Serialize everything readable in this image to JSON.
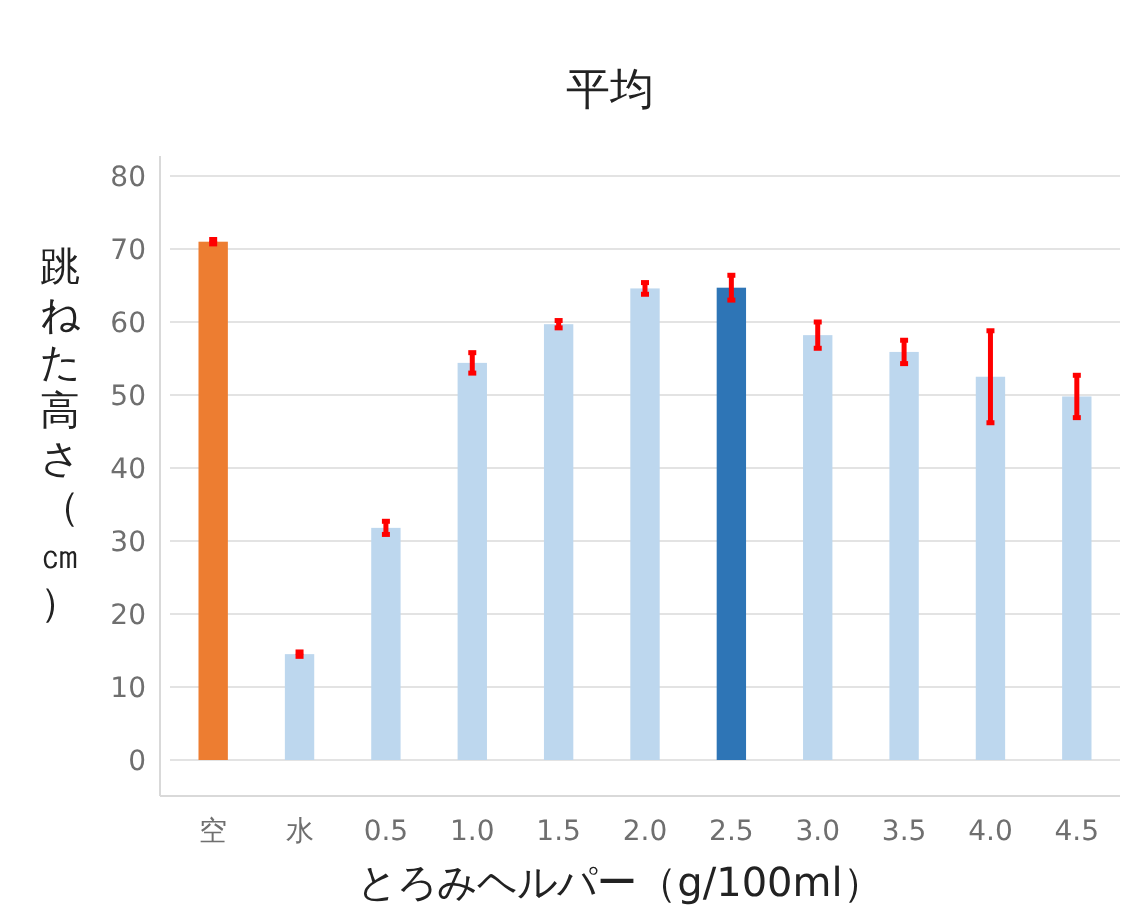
{
  "chart_data": {
    "type": "bar",
    "title": "平均",
    "xlabel": "とろみヘルパー（g/100ml）",
    "ylabel": "跳ねた高さ（㎝）",
    "categories": [
      "空",
      "水",
      "0.5",
      "1.0",
      "1.5",
      "2.0",
      "2.5",
      "3.0",
      "3.5",
      "4.0",
      "4.5"
    ],
    "values": [
      71.0,
      14.5,
      31.8,
      54.4,
      59.7,
      64.6,
      64.7,
      58.2,
      55.9,
      52.5,
      49.8
    ],
    "errors": [
      0.3,
      0.3,
      0.9,
      1.4,
      0.5,
      0.8,
      1.7,
      1.8,
      1.6,
      6.3,
      2.9
    ],
    "colors": [
      "#ed7d31",
      "#bdd7ee",
      "#bdd7ee",
      "#bdd7ee",
      "#bdd7ee",
      "#bdd7ee",
      "#2e75b6",
      "#bdd7ee",
      "#bdd7ee",
      "#bdd7ee",
      "#bdd7ee"
    ],
    "ylim": [
      0,
      80
    ],
    "yticks": [
      0,
      10,
      20,
      30,
      40,
      50,
      60,
      70,
      80
    ],
    "grid": "y"
  }
}
